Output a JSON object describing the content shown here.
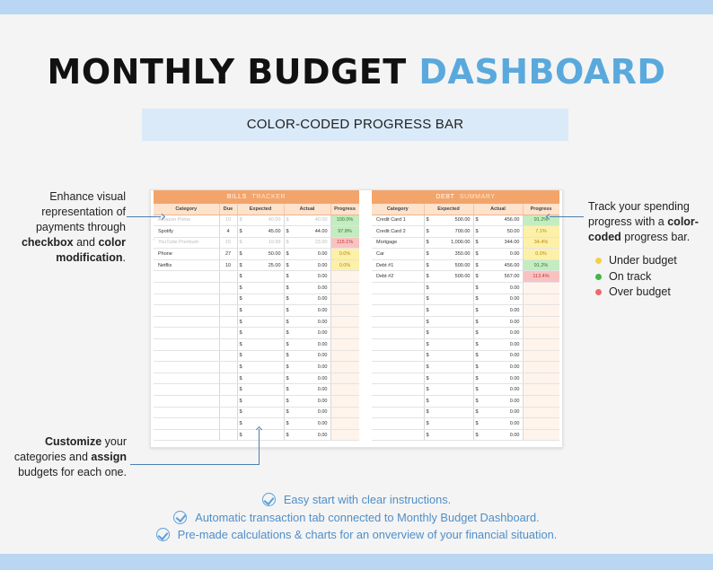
{
  "header": {
    "title_part1": "MONTHLY BUDGET",
    "title_part2": "DASHBOARD",
    "subtitle": "COLOR-CODED PROGRESS BAR"
  },
  "bills": {
    "header_main": "BILLS",
    "header_sub": "TRACKER",
    "columns": [
      "Category",
      "Due",
      "Expected",
      "Actual",
      "Progress"
    ],
    "rows": [
      {
        "checked": true,
        "category": "Amazon Prime",
        "due": "10",
        "expected": "40.00",
        "actual": "40.00",
        "progress": "100.0%",
        "status": "green",
        "paid": true
      },
      {
        "checked": false,
        "category": "Spotify",
        "due": "4",
        "expected": "45.00",
        "actual": "44.00",
        "progress": "97.8%",
        "status": "green",
        "paid": false
      },
      {
        "checked": true,
        "category": "YouTube Premium",
        "due": "15",
        "expected": "19.99",
        "actual": "23.00",
        "progress": "115.1%",
        "status": "red",
        "paid": true
      },
      {
        "checked": false,
        "category": "Phone",
        "due": "27",
        "expected": "50.00",
        "actual": "0.00",
        "progress": "0.0%",
        "status": "yellow",
        "paid": false
      },
      {
        "checked": false,
        "category": "Netflix",
        "due": "10",
        "expected": "25.00",
        "actual": "0.00",
        "progress": "0.0%",
        "status": "yellow",
        "paid": false
      }
    ],
    "empty_rows": 15,
    "empty_actual": "0.00",
    "currency": "$"
  },
  "debt": {
    "header_main": "DEBT",
    "header_sub": "SUMMARY",
    "columns": [
      "Category",
      "Expected",
      "Actual",
      "Progress"
    ],
    "rows": [
      {
        "category": "Credit Card 1",
        "expected": "500.00",
        "actual": "456.00",
        "progress": "91.2%",
        "status": "green"
      },
      {
        "category": "Credit Card 2",
        "expected": "700.00",
        "actual": "50.00",
        "progress": "7.1%",
        "status": "yellow"
      },
      {
        "category": "Mortgage",
        "expected": "1,000.00",
        "actual": "344.00",
        "progress": "34.4%",
        "status": "yellow"
      },
      {
        "category": "Car",
        "expected": "350.00",
        "actual": "0.00",
        "progress": "0.0%",
        "status": "yellow"
      },
      {
        "category": "Debt #1",
        "expected": "500.00",
        "actual": "456.00",
        "progress": "91.2%",
        "status": "green"
      },
      {
        "category": "Debt #2",
        "expected": "500.00",
        "actual": "567.00",
        "progress": "113.4%",
        "status": "red"
      }
    ],
    "empty_rows": 14,
    "empty_actual": "0.00",
    "currency": "$"
  },
  "annotations": {
    "left_top": {
      "p1": "Enhance visual representation of payments through ",
      "b1": "checkbox",
      "p2": " and ",
      "b2": "color modification",
      "p3": "."
    },
    "left_bottom": {
      "b1": "Customize",
      "p1": " your categories and ",
      "b2": "assign",
      "p2": " budgets for each one."
    },
    "right_top": {
      "p1": "Track your spending progress with a ",
      "b1": "color-coded",
      "p2": " progress bar."
    }
  },
  "legend": [
    {
      "label": "Under budget",
      "color": "#f2d14a"
    },
    {
      "label": "On track",
      "color": "#43b649"
    },
    {
      "label": "Over budget",
      "color": "#ec6a6a"
    }
  ],
  "features": [
    "Easy start with clear instructions.",
    "Automatic transaction tab connected to Monthly Budget Dashboard.",
    "Pre-made calculations & charts for an onverview of your financial situation."
  ],
  "colors": {
    "accent_blue": "#5aa9dc",
    "header_orange": "#f3a46a",
    "band_blue": "#b9d6f2"
  }
}
